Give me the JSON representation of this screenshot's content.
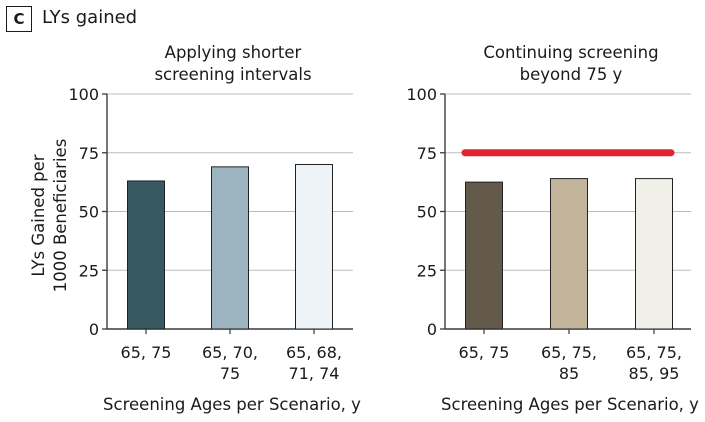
{
  "panel": {
    "letter": "C",
    "title": "LYs gained"
  },
  "colors": {
    "axis": "#3a3a3a",
    "gridline": "#bdbdbd",
    "bar_outline": "#222222",
    "reference_line": "#e1252f"
  },
  "chart_data": [
    {
      "type": "bar",
      "title": "Applying shorter\nscreening intervals",
      "xlabel": "Screening Ages per Scenario, y",
      "ylabel": "LYs Gained per\n1000 Beneficiaries",
      "ylim": [
        0,
        100
      ],
      "yticks": [
        0,
        25,
        50,
        75,
        100
      ],
      "grid": true,
      "categories": [
        "65, 75",
        "65, 70,\n75",
        "65, 68,\n71, 74"
      ],
      "values": [
        63,
        69,
        70
      ],
      "bar_colors": [
        "#365962",
        "#9bb4bf",
        "#eef3f7"
      ]
    },
    {
      "type": "bar",
      "title": "Continuing screening\nbeyond 75 y",
      "xlabel": "Screening Ages per Scenario, y",
      "ylabel": "",
      "ylim": [
        0,
        100
      ],
      "yticks": [
        0,
        25,
        50,
        75,
        100
      ],
      "grid": true,
      "categories": [
        "65, 75",
        "65, 75,\n85",
        "65, 75,\n85, 95"
      ],
      "values": [
        62.5,
        64,
        64
      ],
      "bar_colors": [
        "#645a4c",
        "#c3b49c",
        "#f1f0e8"
      ],
      "reference_line": {
        "value": 75
      }
    }
  ]
}
